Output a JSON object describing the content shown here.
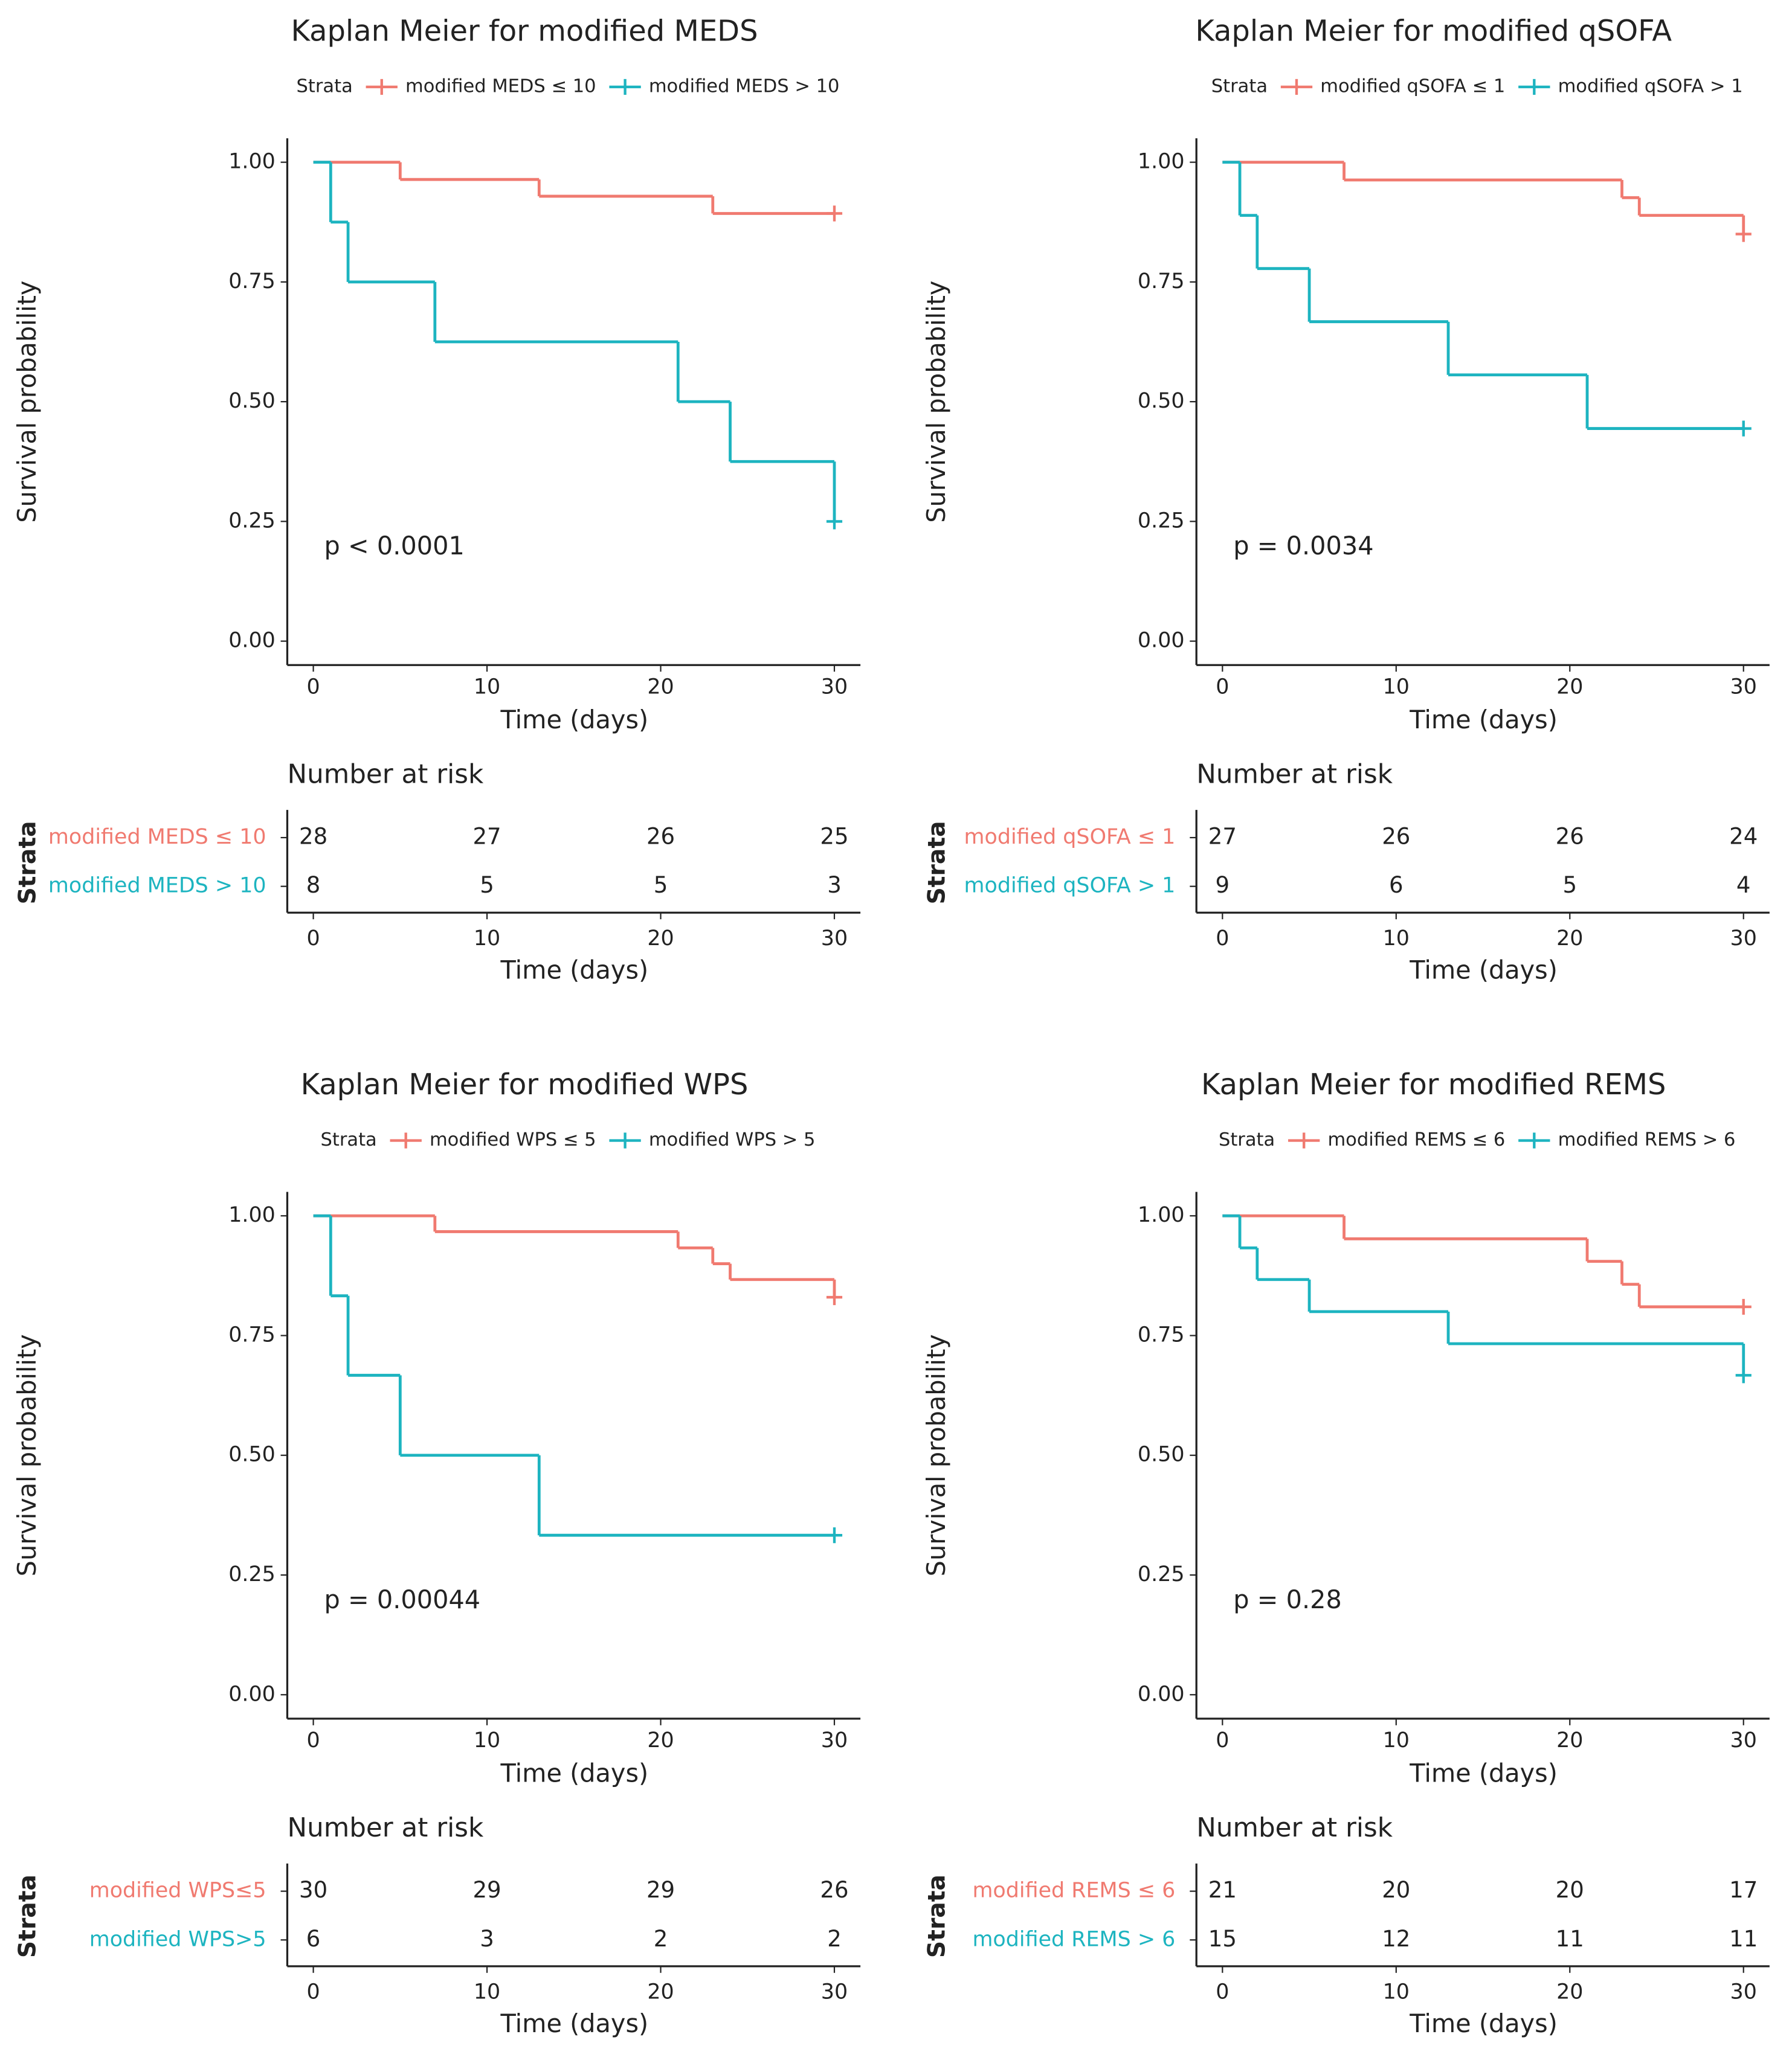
{
  "chart_data": [
    {
      "type": "step",
      "title": "Kaplan Meier for modified MEDS",
      "legend_title": "Strata",
      "series": [
        {
          "name": "modified MEDS ≤ 10",
          "color": "#F07A70",
          "x": [
            0,
            5,
            13,
            23,
            30
          ],
          "values": [
            1,
            0.964,
            0.929,
            0.893,
            0.893
          ]
        },
        {
          "name": "modified MEDS > 10",
          "color": "#1DB4C0",
          "x": [
            0,
            1,
            2,
            7,
            21,
            24,
            30
          ],
          "values": [
            1,
            0.875,
            0.75,
            0.625,
            0.5,
            0.375,
            0.25
          ]
        }
      ],
      "xlabel": "Time (days)",
      "ylabel": "Survival probability",
      "xlim": [
        -1.5,
        31.5
      ],
      "ylim": [
        -0.05,
        1.05
      ],
      "xticks": [
        0,
        10,
        20,
        30
      ],
      "yticks": [
        {
          "value": 0,
          "label": "0.00"
        },
        {
          "value": 0.25,
          "label": "0.25"
        },
        {
          "value": 0.5,
          "label": "0.50"
        },
        {
          "value": 0.75,
          "label": "0.75"
        },
        {
          "value": 1,
          "label": "1.00"
        }
      ],
      "annotation": "p < 0.0001",
      "risk_table": {
        "title": "Number at risk",
        "strata_label": "Strata",
        "xlabel": "Time (days)",
        "xticks": [
          0,
          10,
          20,
          30
        ],
        "rows": [
          {
            "name": "modified MEDS ≤ 10",
            "color": "#F07A70",
            "values": [
              28,
              27,
              26,
              25
            ]
          },
          {
            "name": "modified MEDS > 10",
            "color": "#1DB4C0",
            "values": [
              8,
              5,
              5,
              3
            ]
          }
        ]
      }
    },
    {
      "type": "step",
      "title": "Kaplan Meier for modified qSOFA",
      "legend_title": "Strata",
      "series": [
        {
          "name": "modified qSOFA ≤ 1",
          "color": "#F07A70",
          "x": [
            0,
            7,
            23,
            24,
            30
          ],
          "values": [
            1,
            0.963,
            0.926,
            0.889,
            0.85
          ]
        },
        {
          "name": "modified qSOFA > 1",
          "color": "#1DB4C0",
          "x": [
            0,
            1,
            2,
            5,
            13,
            21,
            30
          ],
          "values": [
            1,
            0.889,
            0.778,
            0.667,
            0.556,
            0.444,
            0.444
          ]
        }
      ],
      "xlabel": "Time (days)",
      "ylabel": "Survival probability",
      "xlim": [
        -1.5,
        31.5
      ],
      "ylim": [
        -0.05,
        1.05
      ],
      "xticks": [
        0,
        10,
        20,
        30
      ],
      "yticks": [
        {
          "value": 0,
          "label": "0.00"
        },
        {
          "value": 0.25,
          "label": "0.25"
        },
        {
          "value": 0.5,
          "label": "0.50"
        },
        {
          "value": 0.75,
          "label": "0.75"
        },
        {
          "value": 1,
          "label": "1.00"
        }
      ],
      "annotation": "p = 0.0034",
      "risk_table": {
        "title": "Number at risk",
        "strata_label": "Strata",
        "xlabel": "Time (days)",
        "xticks": [
          0,
          10,
          20,
          30
        ],
        "rows": [
          {
            "name": "modified qSOFA ≤ 1",
            "color": "#F07A70",
            "values": [
              27,
              26,
              26,
              24
            ]
          },
          {
            "name": "modified qSOFA > 1",
            "color": "#1DB4C0",
            "values": [
              9,
              6,
              5,
              4
            ]
          }
        ]
      }
    },
    {
      "type": "step",
      "title": "Kaplan Meier for modified WPS",
      "legend_title": "Strata",
      "series": [
        {
          "name": "modified WPS ≤ 5",
          "color": "#F07A70",
          "x": [
            0,
            7,
            21,
            23,
            24,
            30
          ],
          "values": [
            1,
            0.967,
            0.933,
            0.9,
            0.867,
            0.83
          ]
        },
        {
          "name": "modified WPS > 5",
          "color": "#1DB4C0",
          "x": [
            0,
            1,
            2,
            5,
            13,
            30
          ],
          "values": [
            1,
            0.833,
            0.667,
            0.5,
            0.333,
            0.333
          ]
        }
      ],
      "xlabel": "Time (days)",
      "ylabel": "Survival probability",
      "xlim": [
        -1.5,
        31.5
      ],
      "ylim": [
        -0.05,
        1.05
      ],
      "xticks": [
        0,
        10,
        20,
        30
      ],
      "yticks": [
        {
          "value": 0,
          "label": "0.00"
        },
        {
          "value": 0.25,
          "label": "0.25"
        },
        {
          "value": 0.5,
          "label": "0.50"
        },
        {
          "value": 0.75,
          "label": "0.75"
        },
        {
          "value": 1,
          "label": "1.00"
        }
      ],
      "annotation": "p = 0.00044",
      "risk_table": {
        "title": "Number at risk",
        "strata_label": "Strata",
        "xlabel": "Time (days)",
        "xticks": [
          0,
          10,
          20,
          30
        ],
        "rows": [
          {
            "name": "modified WPS≤5",
            "color": "#F07A70",
            "values": [
              30,
              29,
              29,
              26
            ]
          },
          {
            "name": "modified WPS>5",
            "color": "#1DB4C0",
            "values": [
              6,
              3,
              2,
              2
            ]
          }
        ]
      }
    },
    {
      "type": "step",
      "title": "Kaplan Meier for modified REMS",
      "legend_title": "Strata",
      "series": [
        {
          "name": "modified REMS ≤ 6",
          "color": "#F07A70",
          "x": [
            0,
            7,
            21,
            23,
            24,
            30
          ],
          "values": [
            1,
            0.952,
            0.905,
            0.857,
            0.81,
            0.81
          ]
        },
        {
          "name": "modified REMS > 6",
          "color": "#1DB4C0",
          "x": [
            0,
            1,
            2,
            5,
            13,
            30
          ],
          "values": [
            1,
            0.933,
            0.867,
            0.8,
            0.733,
            0.667
          ]
        }
      ],
      "xlabel": "Time (days)",
      "ylabel": "Survival probability",
      "xlim": [
        -1.5,
        31.5
      ],
      "ylim": [
        -0.05,
        1.05
      ],
      "xticks": [
        0,
        10,
        20,
        30
      ],
      "yticks": [
        {
          "value": 0,
          "label": "0.00"
        },
        {
          "value": 0.25,
          "label": "0.25"
        },
        {
          "value": 0.5,
          "label": "0.50"
        },
        {
          "value": 0.75,
          "label": "0.75"
        },
        {
          "value": 1,
          "label": "1.00"
        }
      ],
      "annotation": "p = 0.28",
      "risk_table": {
        "title": "Number at risk",
        "strata_label": "Strata",
        "xlabel": "Time (days)",
        "xticks": [
          0,
          10,
          20,
          30
        ],
        "rows": [
          {
            "name": "modified REMS ≤ 6",
            "color": "#F07A70",
            "values": [
              21,
              20,
              20,
              17
            ]
          },
          {
            "name": "modified REMS > 6",
            "color": "#1DB4C0",
            "values": [
              15,
              12,
              11,
              11
            ]
          }
        ]
      }
    }
  ]
}
